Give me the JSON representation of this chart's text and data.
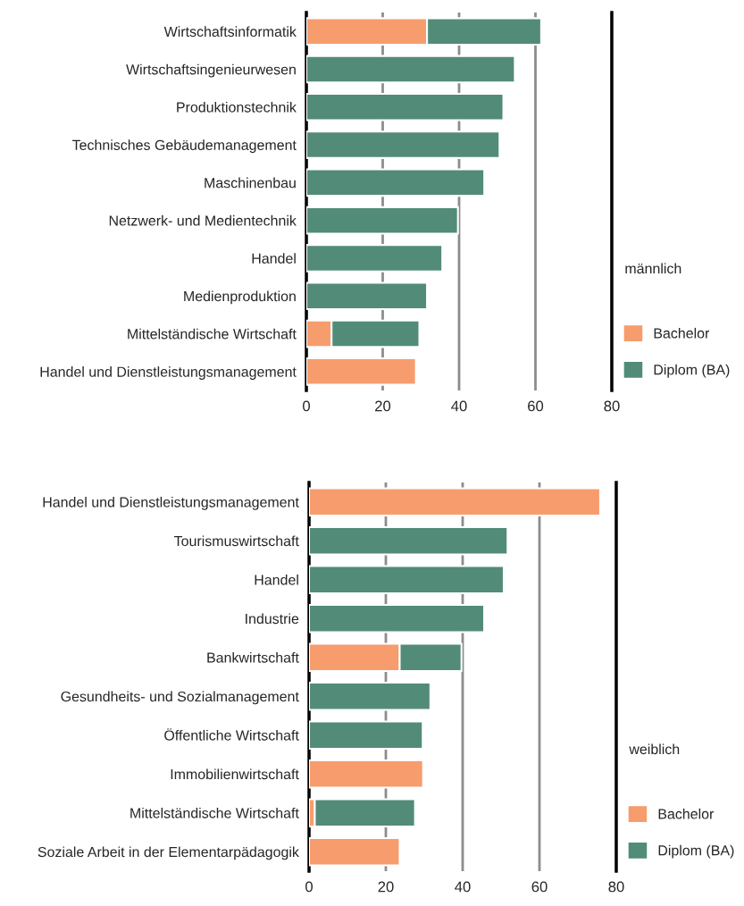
{
  "chart_data": [
    {
      "type": "bar",
      "orientation": "horizontal",
      "stacked": true,
      "legend_title": "männlich",
      "legend": "right",
      "grid": "x",
      "categories": [
        "Wirtschaftsinformatik",
        "Wirtschaftsingenieurwesen",
        "Produktionstechnik",
        "Technisches Gebäudemanagement",
        "Maschinenbau",
        "Netzwerk- und Medientechnik",
        "Handel",
        "Medienproduktion",
        "Mittelständische Wirtschaft",
        "Handel und Dienstleistungsmanagement"
      ],
      "series": [
        {
          "name": "Bachelor",
          "color": "#f79c6d",
          "values": [
            31.6,
            null,
            null,
            null,
            null,
            null,
            null,
            null,
            6.6,
            28.7
          ]
        },
        {
          "name": "Diplom (BA)",
          "color": "#528c78",
          "values": [
            29.9,
            54.6,
            51.6,
            50.6,
            46.6,
            39.7,
            35.6,
            31.6,
            23.0,
            null
          ]
        }
      ],
      "xlim": [
        0,
        80
      ],
      "xticks": [
        0,
        20,
        40,
        60,
        80
      ]
    },
    {
      "type": "bar",
      "orientation": "horizontal",
      "stacked": true,
      "legend_title": "weiblich",
      "legend": "right",
      "grid": "x",
      "categories": [
        "Handel und Dienstleistungsmanagement",
        "Tourismuswirtschaft",
        "Handel",
        "Industrie",
        "Bankwirtschaft",
        "Gesundheits- und Sozialmanagement",
        "Öffentliche Wirtschaft",
        "Immobilienwirtschaft",
        "Mittelständische Wirtschaft",
        "Soziale Arbeit in der Elementarpädagogik"
      ],
      "series": [
        {
          "name": "Bachelor",
          "color": "#f79c6d",
          "values": [
            75.8,
            null,
            null,
            null,
            23.6,
            null,
            null,
            29.7,
            1.5,
            23.6
          ]
        },
        {
          "name": "Diplom (BA)",
          "color": "#528c78",
          "values": [
            null,
            51.7,
            50.7,
            45.6,
            16.1,
            31.6,
            29.6,
            null,
            26.1,
            null
          ]
        }
      ],
      "xlim": [
        0,
        80
      ],
      "xticks": [
        0,
        20,
        40,
        60,
        80
      ]
    }
  ]
}
